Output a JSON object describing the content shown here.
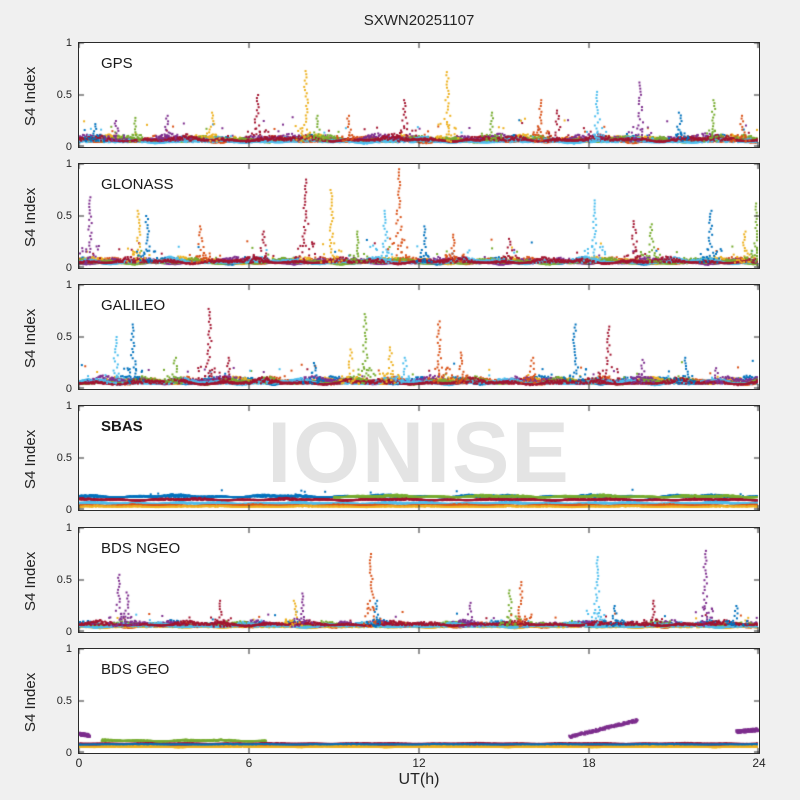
{
  "chart_data": {
    "type": "scatter",
    "title": "SXWN20251107",
    "xlabel": "UT(h)",
    "ylabel": "S4 Index",
    "watermark": "IONISE",
    "xlim": [
      0,
      24
    ],
    "ylim": [
      0,
      1
    ],
    "x_ticks": [
      0,
      6,
      12,
      18,
      24
    ],
    "y_ticks": [
      0,
      0.5,
      1
    ],
    "grid": false,
    "legend": "none",
    "palette": {
      "blue": "#0072BD",
      "orange": "#D95319",
      "yellow": "#EDB120",
      "purple": "#7E2F8E",
      "green": "#77AC30",
      "cyan": "#4DBEEE",
      "maroon": "#A2142F"
    },
    "panels": [
      {
        "label": "GPS",
        "bands": [
          {
            "color": "blue",
            "level": 0.055,
            "amp": 0.05,
            "extra": 0.15
          },
          {
            "color": "orange",
            "level": 0.05,
            "amp": 0.05,
            "extra": 0.15
          },
          {
            "color": "yellow",
            "level": 0.06,
            "amp": 0.05,
            "extra": 0.18
          },
          {
            "color": "purple",
            "level": 0.065,
            "amp": 0.055,
            "extra": 0.18
          },
          {
            "color": "green",
            "level": 0.055,
            "amp": 0.05,
            "extra": 0.15
          },
          {
            "color": "cyan",
            "level": 0.045,
            "amp": 0.045,
            "extra": 0.12
          },
          {
            "color": "maroon",
            "level": 0.06,
            "amp": 0.05,
            "extra": 0.15
          }
        ],
        "spikes": [
          {
            "x": 0.6,
            "peak": 0.22,
            "color": "blue"
          },
          {
            "x": 1.3,
            "peak": 0.25,
            "color": "purple"
          },
          {
            "x": 2.0,
            "peak": 0.28,
            "color": "green"
          },
          {
            "x": 3.1,
            "peak": 0.3,
            "color": "purple"
          },
          {
            "x": 4.7,
            "peak": 0.33,
            "color": "yellow"
          },
          {
            "x": 6.3,
            "peak": 0.5,
            "color": "maroon"
          },
          {
            "x": 8.0,
            "peak": 0.73,
            "color": "yellow"
          },
          {
            "x": 8.4,
            "peak": 0.3,
            "color": "green"
          },
          {
            "x": 9.5,
            "peak": 0.3,
            "color": "orange"
          },
          {
            "x": 11.5,
            "peak": 0.45,
            "color": "maroon"
          },
          {
            "x": 13.0,
            "peak": 0.72,
            "color": "yellow"
          },
          {
            "x": 14.6,
            "peak": 0.33,
            "color": "green"
          },
          {
            "x": 16.3,
            "peak": 0.45,
            "color": "orange"
          },
          {
            "x": 16.9,
            "peak": 0.35,
            "color": "maroon"
          },
          {
            "x": 18.3,
            "peak": 0.53,
            "color": "cyan"
          },
          {
            "x": 19.8,
            "peak": 0.62,
            "color": "purple"
          },
          {
            "x": 21.2,
            "peak": 0.33,
            "color": "blue"
          },
          {
            "x": 22.4,
            "peak": 0.45,
            "color": "green"
          },
          {
            "x": 23.4,
            "peak": 0.3,
            "color": "orange"
          }
        ]
      },
      {
        "label": "GLONASS",
        "bands": [
          {
            "color": "blue",
            "level": 0.045,
            "amp": 0.05,
            "extra": 0.2
          },
          {
            "color": "orange",
            "level": 0.05,
            "amp": 0.05,
            "extra": 0.2
          },
          {
            "color": "yellow",
            "level": 0.05,
            "amp": 0.05,
            "extra": 0.2
          },
          {
            "color": "purple",
            "level": 0.045,
            "amp": 0.05,
            "extra": 0.15
          },
          {
            "color": "green",
            "level": 0.045,
            "amp": 0.045,
            "extra": 0.15
          },
          {
            "color": "cyan",
            "level": 0.05,
            "amp": 0.05,
            "extra": 0.2
          },
          {
            "color": "maroon",
            "level": 0.05,
            "amp": 0.05,
            "extra": 0.15
          }
        ],
        "spikes": [
          {
            "x": 0.4,
            "peak": 0.68,
            "color": "purple"
          },
          {
            "x": 2.1,
            "peak": 0.55,
            "color": "yellow"
          },
          {
            "x": 2.4,
            "peak": 0.5,
            "color": "blue"
          },
          {
            "x": 4.3,
            "peak": 0.4,
            "color": "orange"
          },
          {
            "x": 6.5,
            "peak": 0.35,
            "color": "maroon"
          },
          {
            "x": 8.0,
            "peak": 0.85,
            "color": "maroon"
          },
          {
            "x": 8.9,
            "peak": 0.75,
            "color": "yellow"
          },
          {
            "x": 9.8,
            "peak": 0.35,
            "color": "green"
          },
          {
            "x": 10.8,
            "peak": 0.55,
            "color": "cyan"
          },
          {
            "x": 11.3,
            "peak": 0.95,
            "color": "orange"
          },
          {
            "x": 12.2,
            "peak": 0.4,
            "color": "blue"
          },
          {
            "x": 13.2,
            "peak": 0.32,
            "color": "orange"
          },
          {
            "x": 15.2,
            "peak": 0.28,
            "color": "maroon"
          },
          {
            "x": 18.2,
            "peak": 0.65,
            "color": "cyan"
          },
          {
            "x": 19.6,
            "peak": 0.45,
            "color": "maroon"
          },
          {
            "x": 20.2,
            "peak": 0.42,
            "color": "green"
          },
          {
            "x": 22.3,
            "peak": 0.55,
            "color": "blue"
          },
          {
            "x": 23.5,
            "peak": 0.35,
            "color": "yellow"
          },
          {
            "x": 23.9,
            "peak": 0.62,
            "color": "green"
          }
        ]
      },
      {
        "label": "GALILEO",
        "bands": [
          {
            "color": "blue",
            "level": 0.055,
            "amp": 0.06,
            "extra": 0.18
          },
          {
            "color": "orange",
            "level": 0.055,
            "amp": 0.055,
            "extra": 0.18
          },
          {
            "color": "yellow",
            "level": 0.06,
            "amp": 0.05,
            "extra": 0.15
          },
          {
            "color": "purple",
            "level": 0.06,
            "amp": 0.06,
            "extra": 0.15
          },
          {
            "color": "green",
            "level": 0.055,
            "amp": 0.055,
            "extra": 0.15
          },
          {
            "color": "cyan",
            "level": 0.05,
            "amp": 0.05,
            "extra": 0.12
          },
          {
            "color": "maroon",
            "level": 0.05,
            "amp": 0.05,
            "extra": 0.15
          }
        ],
        "spikes": [
          {
            "x": 1.3,
            "peak": 0.5,
            "color": "cyan"
          },
          {
            "x": 1.9,
            "peak": 0.62,
            "color": "blue"
          },
          {
            "x": 3.4,
            "peak": 0.3,
            "color": "green"
          },
          {
            "x": 4.6,
            "peak": 0.77,
            "color": "maroon"
          },
          {
            "x": 5.3,
            "peak": 0.3,
            "color": "maroon"
          },
          {
            "x": 8.3,
            "peak": 0.25,
            "color": "blue"
          },
          {
            "x": 9.6,
            "peak": 0.38,
            "color": "yellow"
          },
          {
            "x": 10.1,
            "peak": 0.72,
            "color": "green"
          },
          {
            "x": 11.0,
            "peak": 0.4,
            "color": "yellow"
          },
          {
            "x": 11.5,
            "peak": 0.3,
            "color": "cyan"
          },
          {
            "x": 12.7,
            "peak": 0.65,
            "color": "orange"
          },
          {
            "x": 13.5,
            "peak": 0.35,
            "color": "orange"
          },
          {
            "x": 16.0,
            "peak": 0.3,
            "color": "orange"
          },
          {
            "x": 17.5,
            "peak": 0.62,
            "color": "blue"
          },
          {
            "x": 18.7,
            "peak": 0.6,
            "color": "maroon"
          },
          {
            "x": 19.9,
            "peak": 0.28,
            "color": "purple"
          },
          {
            "x": 21.4,
            "peak": 0.3,
            "color": "blue"
          },
          {
            "x": 22.5,
            "peak": 0.2,
            "color": "purple"
          }
        ]
      },
      {
        "label": "SBAS",
        "bold": true,
        "bands": [
          {
            "color": "blue",
            "level": 0.125,
            "amp": 0.022,
            "extra": 0.06,
            "step": 0.012
          },
          {
            "color": "maroon",
            "level": 0.095,
            "amp": 0.018,
            "step": 0.012
          },
          {
            "color": "green",
            "level": 0.125,
            "amp": 0.02,
            "x0": 9,
            "step": 0.012
          },
          {
            "color": "cyan",
            "level": 0.06,
            "amp": 0.016,
            "step": 0.012
          },
          {
            "color": "orange",
            "level": 0.04,
            "amp": 0.012,
            "step": 0.015
          },
          {
            "color": "yellow",
            "level": 0.03,
            "amp": 0.01,
            "step": 0.03
          }
        ],
        "spikes": []
      },
      {
        "label": "BDS NGEO",
        "bands": [
          {
            "color": "blue",
            "level": 0.06,
            "amp": 0.045,
            "extra": 0.1
          },
          {
            "color": "orange",
            "level": 0.05,
            "amp": 0.04,
            "extra": 0.1
          },
          {
            "color": "yellow",
            "level": 0.045,
            "amp": 0.035,
            "extra": 0.08
          },
          {
            "color": "purple",
            "level": 0.06,
            "amp": 0.045,
            "extra": 0.1
          },
          {
            "color": "green",
            "level": 0.055,
            "amp": 0.04,
            "extra": 0.08
          },
          {
            "color": "cyan",
            "level": 0.05,
            "amp": 0.04,
            "extra": 0.1
          },
          {
            "color": "maroon",
            "level": 0.065,
            "amp": 0.04,
            "extra": 0.08
          }
        ],
        "spikes": [
          {
            "x": 1.4,
            "peak": 0.55,
            "color": "purple"
          },
          {
            "x": 1.7,
            "peak": 0.38,
            "color": "purple"
          },
          {
            "x": 5.0,
            "peak": 0.3,
            "color": "maroon"
          },
          {
            "x": 7.6,
            "peak": 0.3,
            "color": "yellow"
          },
          {
            "x": 7.9,
            "peak": 0.37,
            "color": "purple"
          },
          {
            "x": 10.3,
            "peak": 0.75,
            "color": "orange"
          },
          {
            "x": 10.5,
            "peak": 0.3,
            "color": "blue"
          },
          {
            "x": 13.8,
            "peak": 0.28,
            "color": "purple"
          },
          {
            "x": 15.2,
            "peak": 0.4,
            "color": "green"
          },
          {
            "x": 15.6,
            "peak": 0.48,
            "color": "orange"
          },
          {
            "x": 18.3,
            "peak": 0.72,
            "color": "cyan"
          },
          {
            "x": 18.9,
            "peak": 0.25,
            "color": "blue"
          },
          {
            "x": 20.3,
            "peak": 0.3,
            "color": "maroon"
          },
          {
            "x": 22.1,
            "peak": 0.78,
            "color": "purple"
          },
          {
            "x": 23.2,
            "peak": 0.25,
            "color": "blue"
          }
        ]
      },
      {
        "label": "BDS GEO",
        "bands": [
          {
            "color": "orange",
            "level": 0.075,
            "amp": 0.012,
            "step": 0.01
          },
          {
            "color": "yellow",
            "level": 0.058,
            "amp": 0.01,
            "step": 0.01
          },
          {
            "color": "maroon",
            "level": 0.088,
            "amp": 0.008,
            "step": 0.02
          },
          {
            "color": "blue",
            "level": 0.082,
            "amp": 0.006,
            "step": 0.05
          },
          {
            "color": "green",
            "level": 0.115,
            "amp": 0.014,
            "x0": 0.8,
            "x1": 6.6,
            "step": 0.012
          }
        ],
        "spikes": [],
        "segments": [
          {
            "x0": 0.0,
            "x1": 0.35,
            "y0": 0.185,
            "y1": 0.175,
            "color": "purple"
          },
          {
            "x0": 17.3,
            "x1": 19.7,
            "y0": 0.16,
            "y1": 0.32,
            "color": "purple"
          },
          {
            "x0": 23.2,
            "x1": 24.0,
            "y0": 0.21,
            "y1": 0.23,
            "color": "purple"
          }
        ]
      }
    ]
  }
}
